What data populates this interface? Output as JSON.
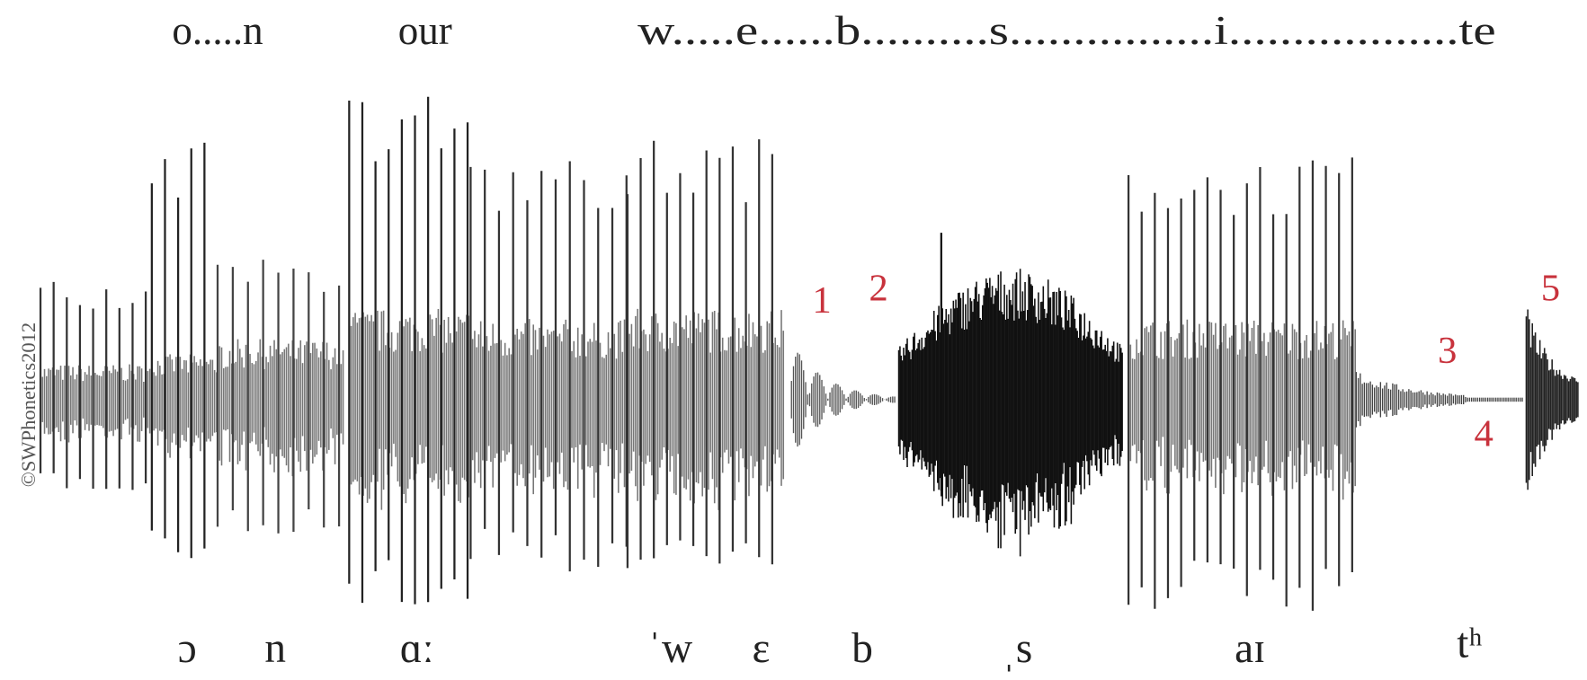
{
  "top_words": [
    "o.....n",
    "our",
    "w.....e......b..........s................i..................te"
  ],
  "ipa": [
    "ɔ",
    "n",
    "ɑː",
    "ˈw",
    "ɛ",
    "b",
    "ˌs",
    "aɪ",
    "tʰ"
  ],
  "markers": [
    "1",
    "2",
    "3",
    "4",
    "5"
  ],
  "copyright": "©SWPhonetics2012"
}
